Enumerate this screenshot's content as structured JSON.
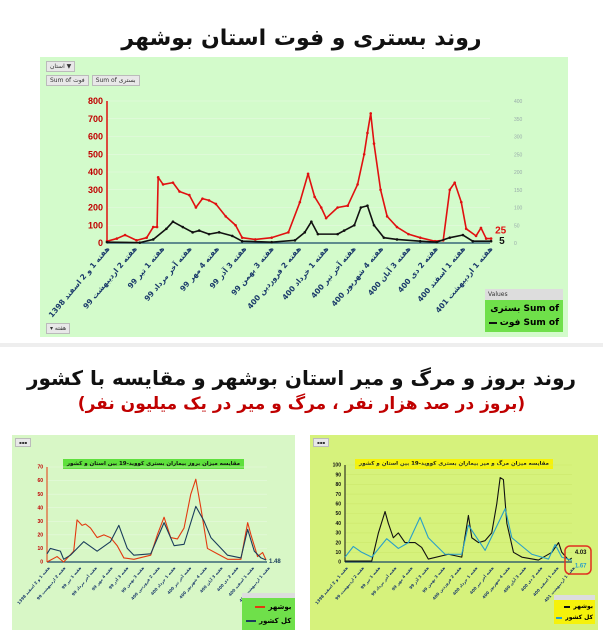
{
  "titles": {
    "top": "روند بستری و فوت استان بوشهر",
    "bottom": "روند بروز و مرگ و میر استان بوشهر و مقایسه با کشور",
    "bottom_sub": "(بروز در صد هزار نفر ، مرگ و میر در یک میلیون نفر)"
  },
  "pivot": {
    "filter_button": "استان",
    "field_death": "Sum of فوت",
    "field_hosp": "Sum of بستری",
    "axis_button": "هفته"
  },
  "colors": {
    "red": "#e01010",
    "black": "#111111",
    "country_dark": "#1a3d5c",
    "country_blue": "#2aa0c8",
    "axis_label": "#c00000",
    "highlight_box": "#e03020"
  },
  "categories": [
    "هفته 1 و 2 اسفند 1398",
    "هفته 2 اردیبهشت 99",
    "هفته 1 تیر 99",
    "هفته آخر مرداد 99",
    "هفته 4 مهر 99",
    "هفته 3 آذر 99",
    "هفته 3 بهمن 99",
    "هفته 2 فروردین 400",
    "هفته 1 خرداد 400",
    "هفته آخر تیر 400",
    "هفته 4 شهریور 400",
    "هفته 3 آبان 400",
    "هفته 2 دی 400",
    "هفته 1 اسفند 400",
    "هفته 1 اردیبهشت 401"
  ],
  "chart_data": [
    {
      "type": "line",
      "title": "",
      "x_unit": "category index",
      "ylim": [
        0,
        800
      ],
      "yticks": [
        0,
        100,
        200,
        300,
        400,
        500,
        600,
        700,
        800
      ],
      "y2lim": [
        0,
        400
      ],
      "y2ticks": [
        0,
        50,
        100,
        150,
        200,
        250,
        300,
        350,
        400
      ],
      "grid": true,
      "legend": {
        "title": "Values",
        "placement": "bottom-right"
      },
      "series": [
        {
          "name": "Sum of بستری",
          "axis": "left",
          "color": "#e01010",
          "end_label": "25",
          "points": [
            [
              0,
              10
            ],
            [
              0.36,
              25
            ],
            [
              0.66,
              45
            ],
            [
              1.08,
              15
            ],
            [
              1.45,
              30
            ],
            [
              1.69,
              90
            ],
            [
              1.83,
              90
            ],
            [
              1.87,
              370
            ],
            [
              2.05,
              330
            ],
            [
              2.41,
              340
            ],
            [
              2.65,
              290
            ],
            [
              3.01,
              270
            ],
            [
              3.25,
              200
            ],
            [
              3.49,
              250
            ],
            [
              3.73,
              240
            ],
            [
              3.98,
              220
            ],
            [
              4.34,
              150
            ],
            [
              4.7,
              100
            ],
            [
              4.94,
              30
            ],
            [
              5.42,
              20
            ],
            [
              6.02,
              30
            ],
            [
              6.63,
              60
            ],
            [
              7.05,
              230
            ],
            [
              7.35,
              390
            ],
            [
              7.59,
              260
            ],
            [
              7.83,
              200
            ],
            [
              8.01,
              140
            ],
            [
              8.43,
              200
            ],
            [
              8.8,
              210
            ],
            [
              9.16,
              330
            ],
            [
              9.4,
              500
            ],
            [
              9.52,
              620
            ],
            [
              9.64,
              730
            ],
            [
              9.76,
              560
            ],
            [
              10.0,
              300
            ],
            [
              10.24,
              150
            ],
            [
              10.6,
              90
            ],
            [
              11.02,
              50
            ],
            [
              11.45,
              30
            ],
            [
              11.99,
              10
            ],
            [
              12.29,
              15
            ],
            [
              12.53,
              300
            ],
            [
              12.71,
              340
            ],
            [
              12.95,
              230
            ],
            [
              13.13,
              80
            ],
            [
              13.49,
              40
            ],
            [
              13.67,
              85
            ],
            [
              13.86,
              25
            ],
            [
              14.04,
              25
            ]
          ]
        },
        {
          "name": "Sum of فوت",
          "axis": "right",
          "color": "#111111",
          "end_label": "5",
          "points": [
            [
              0,
              2.5
            ],
            [
              1.2,
              1
            ],
            [
              1.69,
              10
            ],
            [
              2.17,
              40
            ],
            [
              2.41,
              60
            ],
            [
              2.77,
              45
            ],
            [
              3.13,
              30
            ],
            [
              3.37,
              35
            ],
            [
              3.73,
              25
            ],
            [
              4.1,
              30
            ],
            [
              4.58,
              20
            ],
            [
              4.94,
              5
            ],
            [
              6.02,
              2.5
            ],
            [
              6.87,
              7.5
            ],
            [
              7.23,
              30
            ],
            [
              7.47,
              60
            ],
            [
              7.71,
              25
            ],
            [
              8.43,
              25
            ],
            [
              8.67,
              35
            ],
            [
              9.04,
              50
            ],
            [
              9.28,
              100
            ],
            [
              9.52,
              105
            ],
            [
              9.76,
              50
            ],
            [
              10.12,
              15
            ],
            [
              10.6,
              10
            ],
            [
              11.45,
              5
            ],
            [
              12.05,
              2.5
            ],
            [
              12.53,
              15
            ],
            [
              13.01,
              22.5
            ],
            [
              13.37,
              5
            ],
            [
              14.04,
              5
            ]
          ]
        }
      ]
    },
    {
      "type": "line",
      "title": "مقایسه میزان بروز بیماران بستری کووید-19 بین استان و کشور",
      "ylim": [
        0,
        70
      ],
      "yticks": [
        0,
        10,
        20,
        30,
        40,
        50,
        60,
        70
      ],
      "grid": true,
      "legend": {
        "placement": "bottom-right"
      },
      "series": [
        {
          "name": "بوشهر",
          "color": "#e23a10",
          "points": [
            [
              0,
              0
            ],
            [
              0.64,
              4
            ],
            [
              1.06,
              0
            ],
            [
              1.7,
              8
            ],
            [
              1.91,
              31
            ],
            [
              2.23,
              27
            ],
            [
              2.45,
              28
            ],
            [
              2.77,
              25
            ],
            [
              3.19,
              18
            ],
            [
              3.62,
              20
            ],
            [
              4.04,
              18
            ],
            [
              4.47,
              12
            ],
            [
              4.89,
              3
            ],
            [
              5.53,
              2
            ],
            [
              6.6,
              5
            ],
            [
              7.02,
              20
            ],
            [
              7.45,
              33
            ],
            [
              7.87,
              18
            ],
            [
              8.3,
              17
            ],
            [
              8.72,
              25
            ],
            [
              9.15,
              50
            ],
            [
              9.47,
              61
            ],
            [
              9.79,
              40
            ],
            [
              10.21,
              10
            ],
            [
              10.85,
              6
            ],
            [
              11.49,
              2
            ],
            [
              12.34,
              2
            ],
            [
              12.77,
              29
            ],
            [
              12.98,
              20
            ],
            [
              13.4,
              4
            ],
            [
              13.72,
              7
            ],
            [
              13.94,
              1.48
            ]
          ]
        },
        {
          "name": "کل کشور",
          "color": "#1a3d5c",
          "end_label": "1.48",
          "points": [
            [
              0,
              6
            ],
            [
              0.21,
              10
            ],
            [
              0.85,
              8
            ],
            [
              1.06,
              2
            ],
            [
              1.49,
              5
            ],
            [
              2.34,
              15
            ],
            [
              3.19,
              8
            ],
            [
              4.04,
              15
            ],
            [
              4.57,
              27
            ],
            [
              5.11,
              10
            ],
            [
              5.53,
              5
            ],
            [
              6.6,
              6
            ],
            [
              7.45,
              29
            ],
            [
              8.09,
              12
            ],
            [
              8.72,
              13
            ],
            [
              9.47,
              41
            ],
            [
              10.0,
              30
            ],
            [
              10.43,
              18
            ],
            [
              11.49,
              5
            ],
            [
              12.34,
              3
            ],
            [
              12.77,
              24
            ],
            [
              13.19,
              8
            ],
            [
              13.62,
              3
            ],
            [
              13.94,
              1.48
            ]
          ]
        }
      ]
    },
    {
      "type": "line",
      "title": "مقایسه میزان مرگ و میر بیماران بستری کووید-19 بین استان و کشور",
      "ylim": [
        0,
        100
      ],
      "yticks": [
        0,
        10,
        20,
        30,
        40,
        50,
        60,
        70,
        80,
        90,
        100
      ],
      "grid": true,
      "legend": {
        "placement": "bottom-right"
      },
      "series": [
        {
          "name": "بوشهر",
          "color": "#111111",
          "end_label": "4.03",
          "points": [
            [
              0,
              1
            ],
            [
              1.65,
              1
            ],
            [
              2.06,
              30
            ],
            [
              2.47,
              52
            ],
            [
              2.67,
              40
            ],
            [
              2.98,
              25
            ],
            [
              3.29,
              30
            ],
            [
              3.7,
              20
            ],
            [
              4.32,
              20
            ],
            [
              4.73,
              15
            ],
            [
              5.14,
              3
            ],
            [
              6.38,
              8
            ],
            [
              7.2,
              5
            ],
            [
              7.61,
              48
            ],
            [
              7.82,
              25
            ],
            [
              8.23,
              20
            ],
            [
              8.64,
              22
            ],
            [
              9.05,
              30
            ],
            [
              9.36,
              60
            ],
            [
              9.57,
              87
            ],
            [
              9.77,
              85
            ],
            [
              9.98,
              40
            ],
            [
              10.39,
              10
            ],
            [
              10.91,
              5
            ],
            [
              11.93,
              2
            ],
            [
              12.76,
              10
            ],
            [
              13.17,
              20
            ],
            [
              13.37,
              10
            ],
            [
              13.79,
              2
            ],
            [
              13.99,
              4.03
            ]
          ]
        },
        {
          "name": "کل کشور",
          "color": "#2aa0c8",
          "end_label": "1.67",
          "points": [
            [
              0,
              5
            ],
            [
              0.51,
              16
            ],
            [
              1.03,
              10
            ],
            [
              1.65,
              5
            ],
            [
              2.57,
              24
            ],
            [
              3.29,
              14
            ],
            [
              3.91,
              20
            ],
            [
              4.63,
              46
            ],
            [
              5.14,
              25
            ],
            [
              6.17,
              8
            ],
            [
              7.2,
              8
            ],
            [
              7.61,
              38
            ],
            [
              8.64,
              12
            ],
            [
              9.88,
              55
            ],
            [
              10.29,
              25
            ],
            [
              11.52,
              8
            ],
            [
              12.55,
              3
            ],
            [
              12.96,
              18
            ],
            [
              13.37,
              5
            ],
            [
              13.99,
              1.67
            ]
          ]
        }
      ]
    }
  ]
}
